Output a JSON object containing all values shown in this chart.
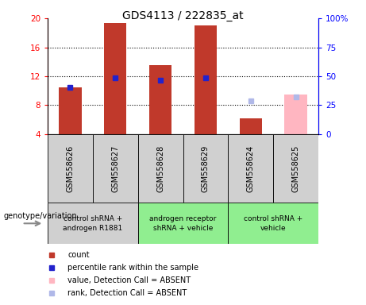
{
  "title": "GDS4113 / 222835_at",
  "samples": [
    "GSM558626",
    "GSM558627",
    "GSM558628",
    "GSM558629",
    "GSM558624",
    "GSM558625"
  ],
  "count_values": [
    10.5,
    19.3,
    13.5,
    19.0,
    6.2,
    null
  ],
  "rank_values": [
    10.5,
    11.8,
    11.5,
    11.8,
    null,
    null
  ],
  "absent_value": [
    null,
    null,
    null,
    null,
    null,
    9.5
  ],
  "absent_rank": [
    null,
    null,
    null,
    null,
    8.6,
    9.2
  ],
  "ylim": [
    4,
    20
  ],
  "yticks": [
    4,
    8,
    12,
    16,
    20
  ],
  "ytick_labels": [
    "4",
    "8",
    "12",
    "16",
    "20"
  ],
  "y2_ticks": [
    0,
    25,
    50,
    75,
    100
  ],
  "y2_tick_labels": [
    "0",
    "25",
    "50",
    "75",
    "100%"
  ],
  "bar_color": "#c0392b",
  "rank_color": "#2222cc",
  "absent_bar_color": "#ffb6c1",
  "absent_rank_color": "#b0b8e8",
  "bg_color": "#ffffff",
  "group_configs": [
    {
      "indices": [
        0,
        1
      ],
      "label": "control shRNA +\nandrogen R1881",
      "color": "#d0d0d0"
    },
    {
      "indices": [
        2,
        3
      ],
      "label": "androgen receptor\nshRNA + vehicle",
      "color": "#90ee90"
    },
    {
      "indices": [
        4,
        5
      ],
      "label": "control shRNA +\nvehicle",
      "color": "#90ee90"
    }
  ],
  "legend_items": [
    {
      "label": "count",
      "color": "#c0392b"
    },
    {
      "label": "percentile rank within the sample",
      "color": "#2222cc"
    },
    {
      "label": "value, Detection Call = ABSENT",
      "color": "#ffb6c1"
    },
    {
      "label": "rank, Detection Call = ABSENT",
      "color": "#b0b8e8"
    }
  ],
  "geno_label": "genotype/variation"
}
